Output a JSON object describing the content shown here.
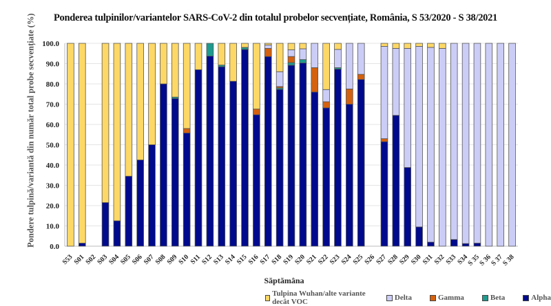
{
  "chart_data": {
    "type": "bar",
    "stacked": true,
    "title": "Ponderea tulpinilor/variantelor SARS-CoV-2 din totalul probelor secvențiate, România, S 53/2020 - S 38/2021",
    "xlabel": "Săptămâna",
    "ylabel": "Pondere tulpină/variantă din număr total probe secvențiate (%)",
    "ylim": [
      0,
      100
    ],
    "yticks": [
      "0.0",
      "10.0",
      "20.0",
      "30.0",
      "40.0",
      "50.0",
      "60.0",
      "70.0",
      "80.0",
      "90.0",
      "100.0"
    ],
    "grid": true,
    "legend_position": "bottom-right",
    "categories": [
      "S53",
      "S01",
      "S02",
      "S03",
      "S04",
      "S05",
      "S06",
      "S07",
      "S08",
      "S09",
      "S10",
      "S11",
      "S12",
      "S13",
      "S14",
      "S15",
      "S16",
      "S17",
      "S18",
      "S19",
      "S20",
      "S21",
      "S22",
      "S23",
      "S24",
      "S25",
      "S26",
      "S27",
      "S28",
      "S29",
      "S30",
      "S31",
      "S32",
      "S33",
      "S34",
      "S 35",
      "S 36",
      "S 37",
      "S 38"
    ],
    "series": [
      {
        "name": "Alpha",
        "color": "#000a8c",
        "values": [
          0,
          1.5,
          0,
          21.5,
          12.5,
          34.5,
          42.5,
          50,
          80,
          72.8,
          55.8,
          87,
          93.7,
          88.5,
          81.3,
          97,
          64.8,
          93.5,
          77.3,
          89.2,
          90.3,
          76,
          68.2,
          87.3,
          70,
          82.2,
          0,
          51.5,
          64.5,
          38.8,
          9.5,
          2,
          0,
          3.3,
          1.3,
          1.5,
          0,
          0,
          0
        ]
      },
      {
        "name": "Beta",
        "color": "#1f9a8e",
        "values": [
          0,
          0,
          0,
          0,
          0,
          0,
          0,
          0,
          0,
          0.7,
          0,
          0,
          6.3,
          0.8,
          0,
          1,
          0,
          0,
          0.7,
          1.3,
          1.7,
          0,
          0,
          0.7,
          0,
          0,
          0,
          0,
          0,
          0,
          0,
          0,
          0,
          0,
          0,
          0,
          0,
          0,
          0
        ]
      },
      {
        "name": "Gamma",
        "color": "#d4610f",
        "values": [
          0,
          0,
          0,
          0,
          0,
          0,
          0,
          0,
          0,
          0,
          2.2,
          0,
          0,
          0,
          0,
          0,
          2.8,
          4,
          0.7,
          3,
          0,
          12,
          3,
          0,
          7.5,
          2.5,
          0,
          1.5,
          0,
          0,
          0,
          0,
          0,
          0,
          0,
          0,
          0,
          0,
          0
        ]
      },
      {
        "name": "Delta",
        "color": "#cccdf7",
        "values": [
          0,
          0,
          0,
          0,
          0,
          0,
          0,
          0,
          0,
          0,
          0,
          0,
          0,
          0,
          0,
          0,
          0,
          1.7,
          7.3,
          3.3,
          5.3,
          12,
          6,
          9,
          22.5,
          15.3,
          0,
          45.5,
          33,
          58.7,
          89,
          96,
          97.5,
          96.7,
          98.7,
          98.5,
          100,
          100,
          100
        ]
      },
      {
        "name": "Tulpina Wuhan/alte variante decât VOC",
        "color": "#fdd867",
        "values": [
          100,
          98.5,
          0,
          78.5,
          87.5,
          65.5,
          57.5,
          50,
          20,
          26.5,
          42,
          13,
          0,
          10.7,
          18.7,
          2,
          32.4,
          0.8,
          14,
          3.2,
          2.7,
          0,
          22.8,
          3,
          0,
          0,
          0,
          1.5,
          2.5,
          2.5,
          1.5,
          2,
          2.5,
          0,
          0,
          0,
          0,
          0,
          0
        ]
      }
    ]
  },
  "legend": [
    {
      "label": "Tulpina Wuhan/alte variante decât VOC",
      "color": "#fdd867"
    },
    {
      "label": "Delta",
      "color": "#cccdf7"
    },
    {
      "label": "Gamma",
      "color": "#d4610f"
    },
    {
      "label": "Beta",
      "color": "#1f9a8e"
    },
    {
      "label": "Alpha",
      "color": "#000a8c"
    }
  ]
}
